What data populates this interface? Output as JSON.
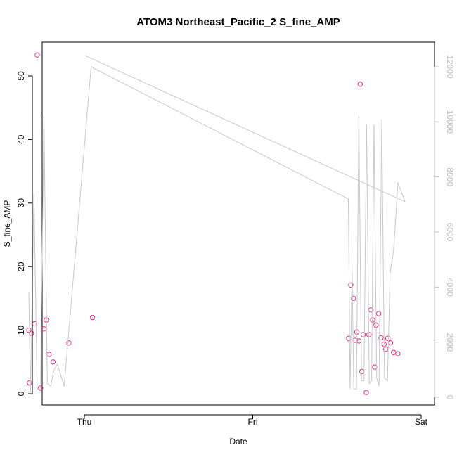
{
  "chart_data": {
    "type": "scatter",
    "title": "ATOM3 Northeast_Pacific_2 S_fine_AMP",
    "xlabel": "Date",
    "ylabel": "S_fine_AMP",
    "x_tick_labels": [
      "Thu",
      "Fri",
      "Sat"
    ],
    "ylim": [
      0,
      55
    ],
    "y_ticks": [
      0,
      10,
      20,
      30,
      40,
      50
    ],
    "y2lim": [
      0,
      12500
    ],
    "y2_ticks": [
      0,
      2000,
      4000,
      6000,
      8000,
      10000,
      12000
    ],
    "colors": {
      "points": "#e7298a",
      "line": "#c8c8c8",
      "right_axis": "#bdbdbd"
    },
    "series": [
      {
        "axis": "left",
        "style": "points",
        "x": [
          -0.165,
          -0.163,
          -0.157,
          -0.148,
          -0.14,
          -0.13,
          -0.12,
          -0.113,
          -0.105,
          -0.093,
          -0.046,
          0.024,
          0.785,
          0.791,
          0.799,
          0.804,
          0.809,
          0.815,
          0.819,
          0.824,
          0.828,
          0.837,
          0.845,
          0.851,
          0.856,
          0.862,
          0.866,
          0.874,
          0.881,
          0.89,
          0.895,
          0.901,
          0.909,
          0.918,
          0.931
        ],
        "y": [
          10.0,
          1.7,
          9.5,
          11.0,
          53.3,
          0.9,
          10.2,
          11.6,
          6.2,
          5.0,
          8.0,
          12.0,
          8.7,
          17.1,
          15.0,
          8.4,
          9.7,
          8.3,
          48.7,
          3.5,
          9.3,
          0.2,
          9.3,
          13.2,
          11.6,
          4.2,
          10.8,
          12.6,
          8.8,
          7.8,
          7.0,
          8.7,
          8.0,
          6.5,
          6.3
        ]
      },
      {
        "axis": "right",
        "style": "line",
        "x": [
          -0.165,
          -0.16,
          -0.15,
          -0.14,
          -0.13,
          -0.12,
          -0.11,
          -0.1,
          -0.09,
          -0.08,
          -0.06,
          0.02,
          0.784,
          0.789,
          0.795,
          0.8,
          0.808,
          0.815,
          0.823,
          0.83,
          0.838,
          0.846,
          0.853,
          0.86,
          0.868,
          0.875,
          0.883,
          0.891,
          0.9,
          0.908,
          0.918,
          0.926,
          0.931,
          0.952,
          0.003
        ],
        "y": [
          3800,
          200,
          7400,
          300,
          300,
          10200,
          500,
          400,
          1000,
          1200,
          400,
          12000,
          7200,
          300,
          4600,
          300,
          300,
          10200,
          600,
          600,
          9900,
          500,
          600,
          9900,
          700,
          400,
          10100,
          700,
          600,
          4500,
          5300,
          6800,
          7800,
          7100,
          12400
        ]
      }
    ]
  }
}
